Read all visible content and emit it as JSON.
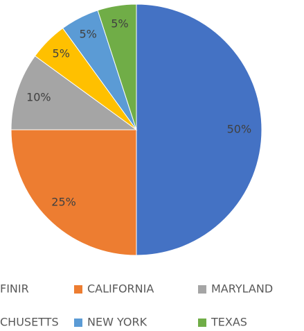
{
  "chart_data": {
    "type": "pie",
    "categories": [
      "FINIR",
      "CALIFORNIA",
      "MARYLAND",
      "CHUSETTS",
      "NEW YORK",
      "TEXAS"
    ],
    "values": [
      50,
      25,
      10,
      5,
      5,
      5
    ],
    "value_labels": [
      "50%",
      "25%",
      "10%",
      "5%",
      "5%",
      "5%"
    ],
    "colors": [
      "#4472c4",
      "#ed7d31",
      "#a5a5a5",
      "#ffc000",
      "#5b9bd5",
      "#70ad47"
    ],
    "legend": "bottom"
  }
}
